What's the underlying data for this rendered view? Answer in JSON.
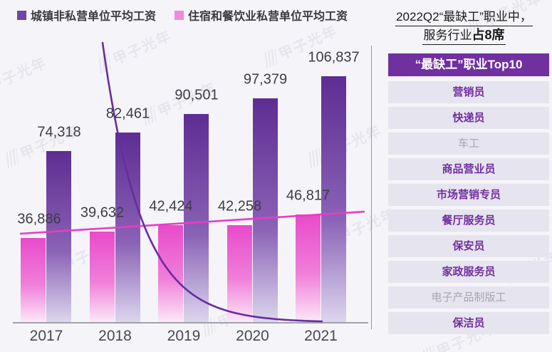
{
  "watermark": {
    "text": "甲子光年"
  },
  "headline": {
    "line1": "2022Q2“最缺工”职业中，",
    "line2_prefix": "服务行业",
    "line2_bold": "占8席"
  },
  "ranking": {
    "title": "“最缺工”职业Top10",
    "items": [
      {
        "label": "营销员",
        "highlight": true
      },
      {
        "label": "快递员",
        "highlight": true
      },
      {
        "label": "车工",
        "highlight": false
      },
      {
        "label": "商品营业员",
        "highlight": true
      },
      {
        "label": "市场营销专员",
        "highlight": true
      },
      {
        "label": "餐厅服务员",
        "highlight": true
      },
      {
        "label": "保安员",
        "highlight": true
      },
      {
        "label": "家政服务员",
        "highlight": true
      },
      {
        "label": "电子产品制版工",
        "highlight": false
      },
      {
        "label": "保洁员",
        "highlight": true
      }
    ]
  },
  "colors": {
    "accent_purple": "#7030a0",
    "row_bg": "#e6e4ee",
    "row_text_other": "#a7a7ac",
    "background": "#f5f4f8",
    "divider": "#97979f",
    "axis": "#a2a2aa",
    "label_text": "#3d3d44"
  },
  "chart_data": {
    "type": "bar",
    "categories": [
      "2017",
      "2018",
      "2019",
      "2020",
      "2021"
    ],
    "series": [
      {
        "name": "城镇非私营单位平均工资",
        "values": [
          74318,
          82461,
          90501,
          97379,
          106837
        ],
        "swatch": "#7244a6",
        "gradient": [
          "#5e2d93",
          "#8a62b6",
          "#ddd7ee"
        ]
      },
      {
        "name": "住宿和餐饮业私营单位平均工资",
        "values": [
          36886,
          39632,
          42424,
          42258,
          46817
        ],
        "swatch": "#ef8ae0",
        "gradient": [
          "#e94acb",
          "#f07fd9",
          "#fceaf8"
        ]
      }
    ],
    "ylim": [
      0,
      110000
    ],
    "grid": false,
    "legend_position": "top-left",
    "value_labels": true,
    "trend_line": {
      "series": "住宿和餐饮业私营单位平均工资",
      "color": "#e93cc6"
    },
    "decay_curve": {
      "color": "#6a2ba0"
    }
  }
}
